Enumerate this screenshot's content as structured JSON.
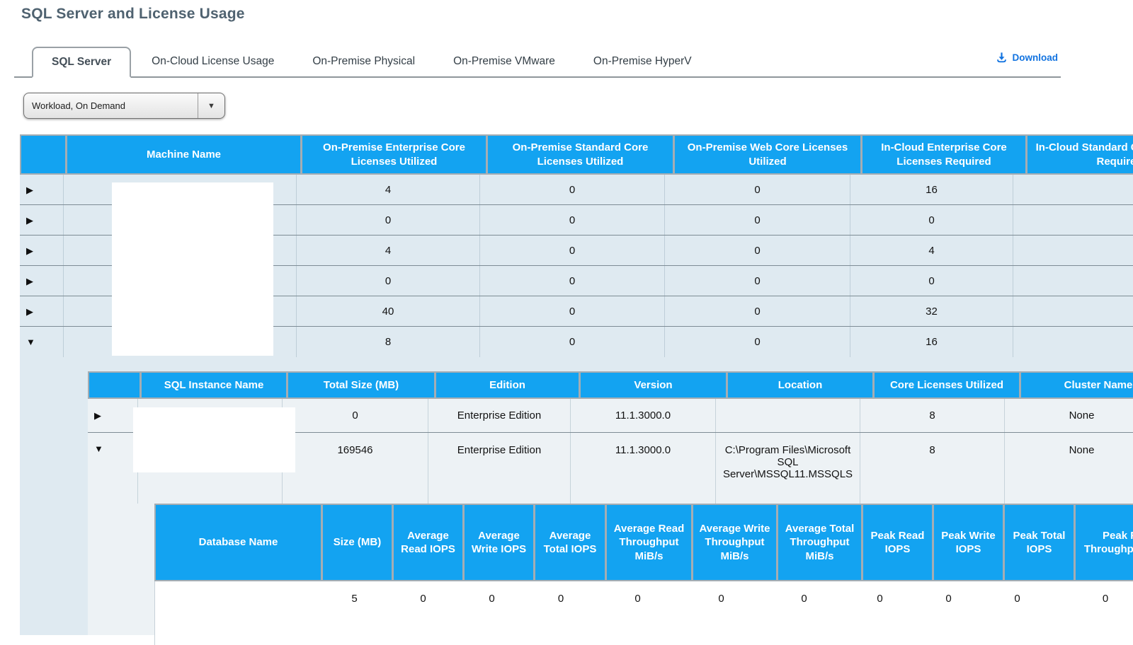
{
  "page": {
    "title": "SQL Server and License Usage"
  },
  "tabs": [
    {
      "label": "SQL Server",
      "active": true
    },
    {
      "label": "On-Cloud License Usage",
      "active": false
    },
    {
      "label": "On-Premise Physical",
      "active": false
    },
    {
      "label": "On-Premise VMware",
      "active": false
    },
    {
      "label": "On-Premise HyperV",
      "active": false
    }
  ],
  "toolbar": {
    "download_label": "Download"
  },
  "workload_filter": {
    "value": "Workload, On Demand"
  },
  "icons": {
    "row_collapsed": "▶",
    "row_expanded": "▼",
    "dropdown_arrow": "▼"
  },
  "colors": {
    "header_blue": "#13a3f1",
    "link_blue": "#1273e0",
    "row_blue": "#dfeaf1",
    "nested_row": "#edf2f5"
  },
  "machines_table": {
    "columns": [
      "",
      "Machine Name",
      "On-Premise Enterprise Core Licenses Utilized",
      "On-Premise Standard Core Licenses Utilized",
      "On-Premise Web Core Licenses Utilized",
      "In-Cloud Enterprise Core Licenses Required",
      "In-Cloud Standard Core Licenses Required"
    ],
    "rows": [
      {
        "expanded": false,
        "cells": [
          "",
          "4",
          "0",
          "0",
          "16",
          ""
        ]
      },
      {
        "expanded": false,
        "cells": [
          "",
          "0",
          "0",
          "0",
          "0",
          ""
        ]
      },
      {
        "expanded": false,
        "cells": [
          "",
          "4",
          "0",
          "0",
          "4",
          ""
        ]
      },
      {
        "expanded": false,
        "cells": [
          "",
          "0",
          "0",
          "0",
          "0",
          ""
        ]
      },
      {
        "expanded": false,
        "cells": [
          "",
          "40",
          "0",
          "0",
          "32",
          ""
        ]
      },
      {
        "expanded": true,
        "cells": [
          "",
          "8",
          "0",
          "0",
          "16",
          ""
        ]
      }
    ]
  },
  "instances_table": {
    "columns": [
      "",
      "SQL Instance Name",
      "Total Size (MB)",
      "Edition",
      "Version",
      "Location",
      "Core Licenses Utilized",
      "Cluster Name"
    ],
    "rows": [
      {
        "expanded": false,
        "cells": [
          "",
          "0",
          "Enterprise Edition",
          "11.1.3000.0",
          "",
          "8",
          "None"
        ]
      },
      {
        "expanded": true,
        "cells": [
          "",
          "169546",
          "Enterprise Edition",
          "11.1.3000.0",
          "C:\\Program Files\\Microsoft SQL Server\\MSSQL11.MSSQLS",
          "8",
          "None"
        ]
      }
    ]
  },
  "databases_table": {
    "columns": [
      "Database Name",
      "Size (MB)",
      "Average Read IOPS",
      "Average Write IOPS",
      "Average Total IOPS",
      "Average Read Throughput MiB/s",
      "Average Write Throughput MiB/s",
      "Average Total Throughput MiB/s",
      "Peak Read IOPS",
      "Peak Write IOPS",
      "Peak Total IOPS",
      "Peak Read Throughput MiB/s"
    ],
    "rows": [
      {
        "cells": [
          "",
          "5",
          "0",
          "0",
          "0",
          "0",
          "0",
          "0",
          "0",
          "0",
          "0",
          "0"
        ]
      }
    ]
  }
}
